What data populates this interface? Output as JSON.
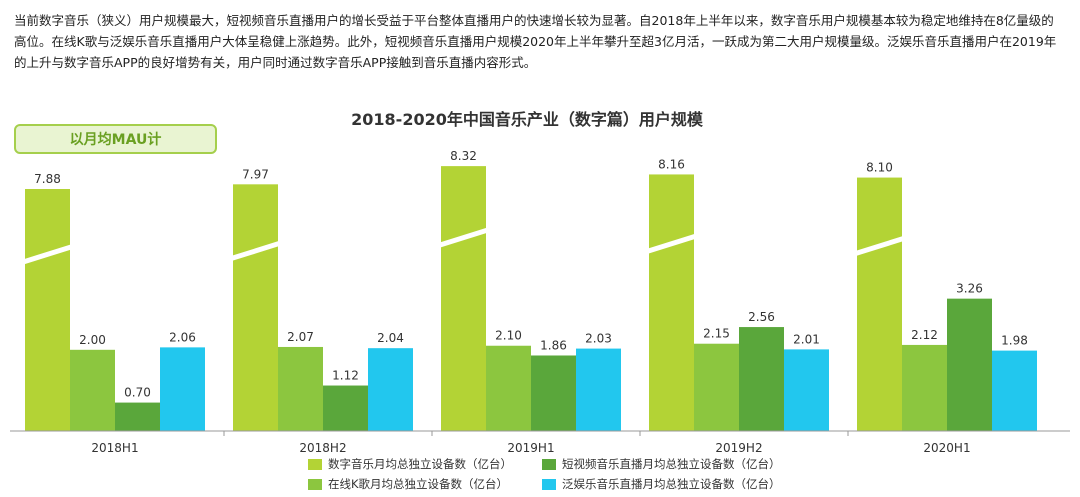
{
  "intro_text": "当前数字音乐（狭义）用户规模最大，短视频音乐直播用户的增长受益于平台整体直播用户的快速增长较为显著。自2018年上半年以来，数字音乐用户规模基本较为稳定地维持在8亿量级的高位。在线K歌与泛娱乐音乐直播用户大体呈稳健上涨趋势。此外，短视频音乐直播用户规模2020年上半年攀升至超3亿月活，一跃成为第二大用户规模量级。泛娱乐音乐直播用户在2019年的上升与数字音乐APP的良好增势有关，用户同时通过数字音乐APP接触到音乐直播内容形式。",
  "badge_text": "以月均MAU计",
  "chart_data": {
    "type": "bar",
    "title": "2018-2020年中国音乐产业（数字篇）用户规模",
    "categories": [
      "2018H1",
      "2018H2",
      "2019H1",
      "2019H2",
      "2020H1"
    ],
    "series": [
      {
        "name": "数字音乐月均总独立设备数（亿台）",
        "color": "#b3d335",
        "values": [
          7.88,
          7.97,
          8.32,
          8.16,
          8.1
        ],
        "labels": [
          "7.88",
          "7.97",
          "8.32",
          "8.16",
          "8.10"
        ],
        "broken": true
      },
      {
        "name": "在线K歌月均总独立设备数（亿台）",
        "color": "#8cc63f",
        "values": [
          2.0,
          2.07,
          2.1,
          2.15,
          2.12
        ],
        "labels": [
          "2.00",
          "2.07",
          "2.10",
          "2.15",
          "2.12"
        ]
      },
      {
        "name": "短视频音乐直播月均总独立设备数（亿台）",
        "color": "#5aa73b",
        "values": [
          0.7,
          1.12,
          1.86,
          2.56,
          3.26
        ],
        "labels": [
          "0.70",
          "1.12",
          "1.86",
          "2.56",
          "3.26"
        ]
      },
      {
        "name": "泛娱乐音乐直播月均总独立设备数（亿台）",
        "color": "#22c7ee",
        "values": [
          2.06,
          2.04,
          2.03,
          2.01,
          1.98
        ],
        "labels": [
          "2.06",
          "2.04",
          "2.03",
          "2.01",
          "1.98"
        ]
      }
    ],
    "axis_break": true,
    "grid": false,
    "legend_position": "bottom"
  }
}
